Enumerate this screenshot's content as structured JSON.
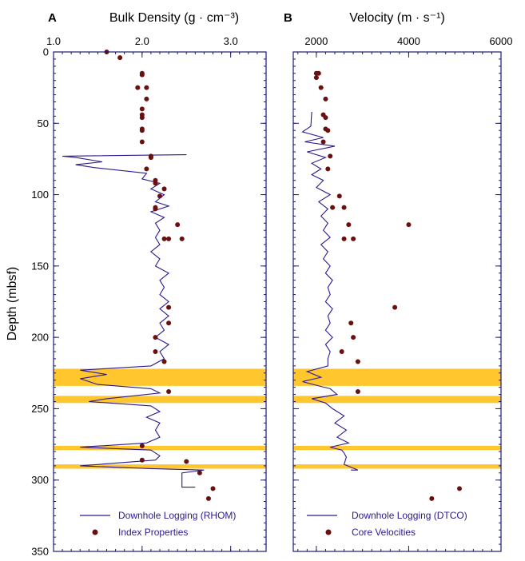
{
  "colors": {
    "log_line": "#2b1a8c",
    "core_points": "#6b0f0f",
    "highlight_band": "#ffc62e",
    "frame": "#1a1a6e"
  },
  "y_axis": {
    "label": "Depth (mbsf)",
    "range": [
      0,
      350
    ],
    "ticks": [
      0,
      50,
      100,
      150,
      200,
      250,
      300,
      350
    ],
    "inverted": true
  },
  "highlight_bands": [
    [
      222,
      234
    ],
    [
      241,
      246
    ],
    [
      276,
      279
    ],
    [
      289,
      292
    ]
  ],
  "chart_data": [
    {
      "type": "scatter",
      "panel_letter": "A",
      "title": "Bulk Density (g · cm⁻³)",
      "xlabel": "Bulk Density (g · cm⁻³)",
      "xlim": [
        1.0,
        3.4
      ],
      "x_ticks": [
        1.0,
        2.0,
        3.0
      ],
      "x_tick_labels": [
        "1.0",
        "2.0",
        "3.0"
      ],
      "legend": [
        {
          "label": "Downhole Logging (RHOM)",
          "marker": "line"
        },
        {
          "label": "Index Properties",
          "marker": "dot"
        }
      ],
      "series": [
        {
          "name": "Downhole Logging (RHOM)",
          "style": "line",
          "points": [
            [
              2.5,
              72
            ],
            [
              1.1,
              73
            ],
            [
              1.25,
              74
            ],
            [
              1.55,
              77
            ],
            [
              1.25,
              79
            ],
            [
              1.45,
              81
            ],
            [
              2.05,
              85
            ],
            [
              2.0,
              89
            ],
            [
              2.2,
              92
            ],
            [
              2.1,
              96
            ],
            [
              2.25,
              100
            ],
            [
              2.15,
              105
            ],
            [
              2.3,
              108
            ],
            [
              2.1,
              112
            ],
            [
              2.25,
              116
            ],
            [
              2.15,
              120
            ],
            [
              2.2,
              125
            ],
            [
              2.15,
              130
            ],
            [
              2.2,
              135
            ],
            [
              2.1,
              140
            ],
            [
              2.2,
              145
            ],
            [
              2.15,
              150
            ],
            [
              2.3,
              155
            ],
            [
              2.2,
              160
            ],
            [
              2.25,
              165
            ],
            [
              2.2,
              170
            ],
            [
              2.3,
              175
            ],
            [
              2.2,
              180
            ],
            [
              2.3,
              185
            ],
            [
              2.2,
              190
            ],
            [
              2.25,
              195
            ],
            [
              2.15,
              200
            ],
            [
              2.3,
              205
            ],
            [
              2.2,
              210
            ],
            [
              2.25,
              215
            ],
            [
              2.1,
              220
            ],
            [
              1.3,
              223
            ],
            [
              1.6,
              226
            ],
            [
              1.3,
              229
            ],
            [
              1.5,
              233
            ],
            [
              2.1,
              236
            ],
            [
              2.2,
              239
            ],
            [
              1.6,
              243
            ],
            [
              1.4,
              245
            ],
            [
              2.1,
              248
            ],
            [
              2.2,
              252
            ],
            [
              2.05,
              256
            ],
            [
              2.2,
              260
            ],
            [
              2.15,
              265
            ],
            [
              2.2,
              270
            ],
            [
              2.05,
              274
            ],
            [
              1.3,
              277
            ],
            [
              2.1,
              279
            ],
            [
              2.2,
              283
            ],
            [
              2.15,
              286
            ],
            [
              1.3,
              290
            ],
            [
              2.1,
              292
            ],
            [
              2.7,
              293
            ],
            [
              2.45,
              295
            ],
            [
              2.45,
              305
            ],
            [
              2.6,
              305
            ]
          ]
        },
        {
          "name": "Index Properties",
          "style": "dot",
          "points": [
            [
              1.6,
              0
            ],
            [
              1.75,
              4
            ],
            [
              2.0,
              15
            ],
            [
              2.0,
              16
            ],
            [
              1.95,
              25
            ],
            [
              2.05,
              25
            ],
            [
              2.05,
              33
            ],
            [
              2.0,
              40
            ],
            [
              2.0,
              44
            ],
            [
              2.0,
              46
            ],
            [
              2.0,
              54
            ],
            [
              2.0,
              55
            ],
            [
              2.0,
              63
            ],
            [
              2.1,
              73
            ],
            [
              2.1,
              74
            ],
            [
              2.05,
              82
            ],
            [
              2.15,
              90
            ],
            [
              2.15,
              92
            ],
            [
              2.25,
              96
            ],
            [
              2.2,
              101
            ],
            [
              2.15,
              109
            ],
            [
              2.15,
              110
            ],
            [
              2.4,
              121
            ],
            [
              2.45,
              131
            ],
            [
              2.3,
              131
            ],
            [
              2.25,
              131
            ],
            [
              2.3,
              179
            ],
            [
              2.3,
              190
            ],
            [
              2.15,
              200
            ],
            [
              2.15,
              210
            ],
            [
              2.25,
              217
            ],
            [
              2.3,
              238
            ],
            [
              2.0,
              276
            ],
            [
              2.0,
              286
            ],
            [
              2.5,
              287
            ],
            [
              2.65,
              295
            ],
            [
              2.8,
              306
            ],
            [
              2.75,
              313
            ]
          ]
        }
      ]
    },
    {
      "type": "scatter",
      "panel_letter": "B",
      "title": "Velocity (m · s⁻¹)",
      "xlabel": "Velocity (m · s⁻¹)",
      "xlim": [
        1500,
        6000
      ],
      "x_ticks": [
        2000,
        4000,
        6000
      ],
      "x_tick_labels": [
        "2000",
        "4000",
        "6000"
      ],
      "legend": [
        {
          "label": "Downhole Logging (DTCO)",
          "marker": "line"
        },
        {
          "label": "Core Velocities",
          "marker": "dot"
        }
      ],
      "series": [
        {
          "name": "Downhole Logging (DTCO)",
          "style": "line",
          "points": [
            [
              1900,
              42
            ],
            [
              1880,
              52
            ],
            [
              1700,
              56
            ],
            [
              2150,
              60
            ],
            [
              1750,
              63
            ],
            [
              2400,
              66
            ],
            [
              1800,
              70
            ],
            [
              2200,
              74
            ],
            [
              1900,
              78
            ],
            [
              2100,
              82
            ],
            [
              1900,
              86
            ],
            [
              2150,
              90
            ],
            [
              2000,
              95
            ],
            [
              2300,
              100
            ],
            [
              2050,
              105
            ],
            [
              2250,
              110
            ],
            [
              2100,
              115
            ],
            [
              2250,
              120
            ],
            [
              2150,
              125
            ],
            [
              2300,
              130
            ],
            [
              2100,
              135
            ],
            [
              2250,
              140
            ],
            [
              2150,
              145
            ],
            [
              2300,
              150
            ],
            [
              2200,
              155
            ],
            [
              2350,
              160
            ],
            [
              2250,
              165
            ],
            [
              2300,
              170
            ],
            [
              2200,
              175
            ],
            [
              2350,
              180
            ],
            [
              2250,
              185
            ],
            [
              2300,
              190
            ],
            [
              2200,
              195
            ],
            [
              2350,
              200
            ],
            [
              2200,
              205
            ],
            [
              2300,
              210
            ],
            [
              2250,
              215
            ],
            [
              2250,
              220
            ],
            [
              1800,
              224
            ],
            [
              2100,
              228
            ],
            [
              1700,
              231
            ],
            [
              2050,
              234
            ],
            [
              2300,
              236
            ],
            [
              2450,
              240
            ],
            [
              1900,
              243
            ],
            [
              2200,
              246
            ],
            [
              2350,
              250
            ],
            [
              2600,
              255
            ],
            [
              2400,
              260
            ],
            [
              2650,
              265
            ],
            [
              2450,
              270
            ],
            [
              2700,
              274
            ],
            [
              2300,
              277
            ],
            [
              2550,
              279
            ],
            [
              2600,
              281
            ],
            [
              2650,
              284
            ],
            [
              2600,
              289
            ],
            [
              2750,
              291
            ],
            [
              2900,
              293
            ],
            [
              2750,
              293
            ]
          ]
        },
        {
          "name": "Core Velocities",
          "style": "dot",
          "points": [
            [
              2000,
              15
            ],
            [
              2050,
              15
            ],
            [
              2000,
              18
            ],
            [
              2100,
              25
            ],
            [
              2200,
              33
            ],
            [
              2150,
              44
            ],
            [
              2200,
              46
            ],
            [
              2200,
              54
            ],
            [
              2250,
              55
            ],
            [
              2150,
              63
            ],
            [
              2300,
              73
            ],
            [
              2250,
              82
            ],
            [
              2500,
              101
            ],
            [
              2350,
              109
            ],
            [
              2600,
              109
            ],
            [
              2700,
              121
            ],
            [
              4000,
              121
            ],
            [
              2600,
              131
            ],
            [
              2800,
              131
            ],
            [
              3700,
              179
            ],
            [
              2750,
              190
            ],
            [
              2800,
              200
            ],
            [
              2550,
              210
            ],
            [
              2900,
              217
            ],
            [
              2900,
              238
            ],
            [
              4500,
              313
            ],
            [
              5100,
              306
            ]
          ]
        }
      ]
    }
  ]
}
